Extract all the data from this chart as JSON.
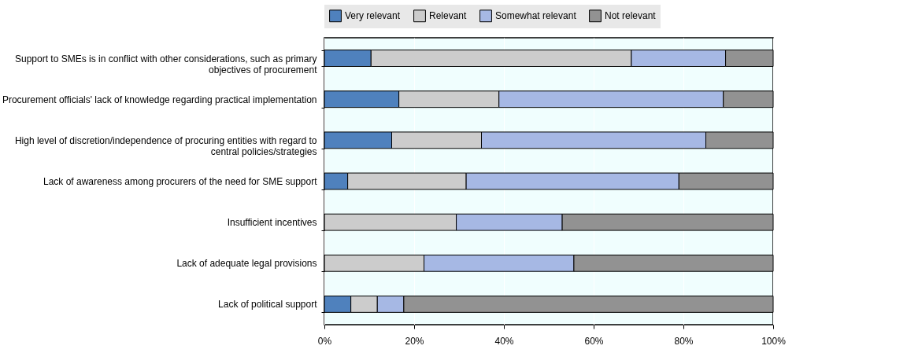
{
  "chart_data": {
    "type": "bar",
    "orientation": "horizontal",
    "stacked": true,
    "categories": [
      "Support to SMEs is in conflict with other considerations, such as primary objectives of procurement",
      "Procurement officials' lack of knowledge regarding practical implementation",
      "High level of discretion/independence of procuring entities with regard to central policies/strategies",
      "Lack of awareness among procurers of the need for SME support",
      "Insufficient incentives",
      "Lack of adequate legal provisions",
      "Lack of political support"
    ],
    "series": [
      {
        "name": "Very relevant",
        "color": "#4f81bd",
        "values": [
          10.4,
          16.6,
          15.0,
          5.2,
          0,
          0,
          5.9
        ]
      },
      {
        "name": "Relevant",
        "color": "#cccccc",
        "values": [
          58.0,
          22.3,
          20.0,
          26.4,
          29.4,
          22.2,
          5.9
        ]
      },
      {
        "name": "Somewhat relevant",
        "color": "#a6b8e4",
        "values": [
          21.0,
          50.0,
          50.0,
          47.4,
          23.6,
          33.4,
          5.9
        ]
      },
      {
        "name": "Not relevant",
        "color": "#929292",
        "values": [
          10.6,
          11.1,
          15.0,
          21.0,
          47.0,
          44.4,
          82.3
        ]
      }
    ],
    "xlim": [
      0,
      100
    ],
    "xticks": [
      {
        "value": 0,
        "label": "0%"
      },
      {
        "value": 20,
        "label": "20%"
      },
      {
        "value": 40,
        "label": "40%"
      },
      {
        "value": 60,
        "label": "60%"
      },
      {
        "value": 80,
        "label": "80%"
      },
      {
        "value": 100,
        "label": "100%"
      }
    ],
    "grid": "x",
    "legend": "top"
  }
}
